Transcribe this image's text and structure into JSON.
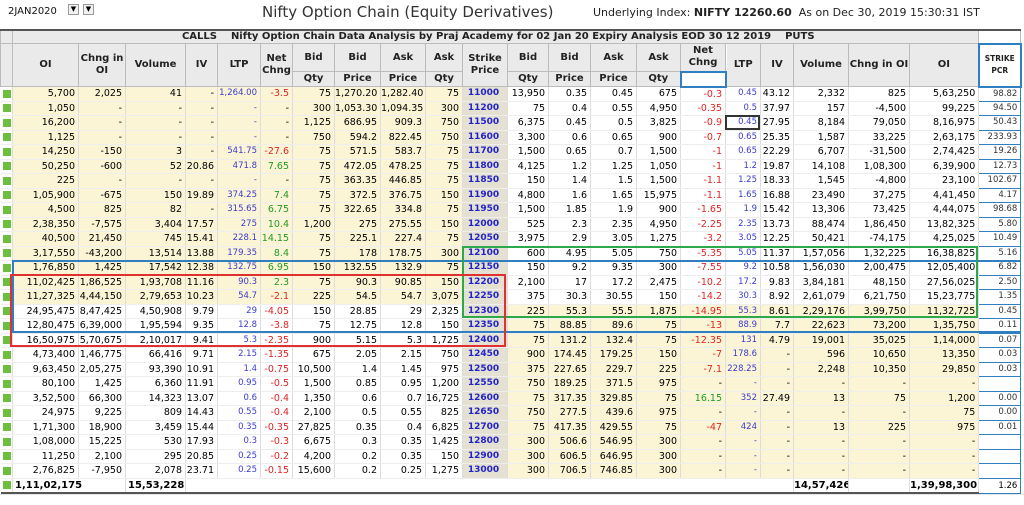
{
  "header": {
    "date": "2JAN2020",
    "title": "Nifty Option Chain (Equity Derivatives)",
    "underlying_label": "Underlying Index:",
    "underlying_value": "NIFTY 12260.60",
    "as_on": "As on Dec 30, 2019 15:30:31 IST"
  },
  "banner": {
    "calls": "CALLS",
    "title": "Nifty Option Chain Data Analysis by Praj Academy for 02 Jan 20 Expiry Analysis EOD 30 12  2019",
    "puts": "PUTS"
  },
  "columns": {
    "oi": "OI",
    "chng_oi": "Chng in OI",
    "volume": "Volume",
    "iv": "IV",
    "ltp": "LTP",
    "net_chng": "Net Chng",
    "bid": "Bid",
    "ask": "Ask",
    "qty": "Qty",
    "price": "Price",
    "strike": "Strike Price",
    "strike_pcr": "STRIKE PCR"
  },
  "colors": {
    "itm_bg": "#fbf5d6",
    "strike_bg": "#e4e1d3",
    "negative": "#e02424",
    "positive": "#229a22",
    "ltp": "#3a3ad0"
  },
  "rows": [
    [
      "5,700",
      "2,025",
      "41",
      "-",
      "1,264.00",
      "-3.5",
      "75",
      "1,270.20",
      "1,282.40",
      "75",
      "11000",
      "13,950",
      "0.35",
      "0.45",
      "675",
      "-0.3",
      "0.45",
      "43.12",
      "2,332",
      "825",
      "5,63,250",
      "98.82"
    ],
    [
      "1,050",
      "-",
      "-",
      "-",
      "-",
      "-",
      "300",
      "1,053.30",
      "1,094.35",
      "300",
      "11200",
      "75",
      "0.4",
      "0.55",
      "4,950",
      "-0.35",
      "0.5",
      "37.97",
      "157",
      "-4,500",
      "99,225",
      "94.50"
    ],
    [
      "16,200",
      "-",
      "-",
      "-",
      "-",
      "-",
      "1,125",
      "686.95",
      "909.3",
      "750",
      "11500",
      "6,375",
      "0.45",
      "0.5",
      "3,825",
      "-0.9",
      "0.45",
      "27.95",
      "8,184",
      "79,050",
      "8,16,975",
      "50.43"
    ],
    [
      "1,125",
      "-",
      "-",
      "-",
      "-",
      "-",
      "750",
      "594.2",
      "822.45",
      "750",
      "11600",
      "3,300",
      "0.6",
      "0.65",
      "900",
      "-0.7",
      "0.65",
      "25.35",
      "1,587",
      "33,225",
      "2,63,175",
      "233.93"
    ],
    [
      "14,250",
      "-150",
      "3",
      "-",
      "541.75",
      "-27.6",
      "75",
      "571.5",
      "583.7",
      "75",
      "11700",
      "1,500",
      "0.65",
      "0.7",
      "1,500",
      "-1",
      "0.65",
      "22.29",
      "6,707",
      "-31,500",
      "2,74,425",
      "19.26"
    ],
    [
      "50,250",
      "-600",
      "52",
      "20.86",
      "471.8",
      "7.65",
      "75",
      "472.05",
      "478.25",
      "75",
      "11800",
      "4,125",
      "1.2",
      "1.25",
      "1,050",
      "-1",
      "1.2",
      "19.87",
      "14,108",
      "1,08,300",
      "6,39,900",
      "12.73"
    ],
    [
      "225",
      "-",
      "-",
      "-",
      "-",
      "-",
      "75",
      "363.35",
      "446.85",
      "75",
      "11850",
      "150",
      "1.4",
      "1.5",
      "1,500",
      "-1.1",
      "1.25",
      "18.33",
      "1,545",
      "-4,800",
      "23,100",
      "102.67"
    ],
    [
      "1,05,900",
      "-675",
      "150",
      "19.89",
      "374.25",
      "7.4",
      "75",
      "372.5",
      "376.75",
      "150",
      "11900",
      "4,800",
      "1.6",
      "1.65",
      "15,975",
      "-1.1",
      "1.65",
      "16.88",
      "23,490",
      "37,275",
      "4,41,450",
      "4.17"
    ],
    [
      "4,500",
      "825",
      "82",
      "-",
      "315.65",
      "6.75",
      "75",
      "322.65",
      "334.8",
      "75",
      "11950",
      "1,500",
      "1.85",
      "1.9",
      "900",
      "-1.65",
      "1.9",
      "15.42",
      "13,306",
      "73,425",
      "4,44,075",
      "98.68"
    ],
    [
      "2,38,350",
      "-7,575",
      "3,404",
      "17.57",
      "275",
      "10.4",
      "1,200",
      "275",
      "275.55",
      "150",
      "12000",
      "525",
      "2.3",
      "2.35",
      "4,950",
      "-2.25",
      "2.35",
      "13.73",
      "88,474",
      "1,86,450",
      "13,82,325",
      "5.80"
    ],
    [
      "40,500",
      "21,450",
      "745",
      "15.41",
      "228.1",
      "14.15",
      "75",
      "225.1",
      "227.4",
      "75",
      "12050",
      "3,975",
      "2.9",
      "3.05",
      "1,275",
      "-3.2",
      "3.05",
      "12.25",
      "50,421",
      "-74,175",
      "4,25,025",
      "10.49"
    ],
    [
      "3,17,550",
      "-43,200",
      "13,514",
      "13.88",
      "179.35",
      "8.4",
      "75",
      "178",
      "178.75",
      "300",
      "12100",
      "600",
      "4.95",
      "5.05",
      "750",
      "-5.35",
      "5.05",
      "11.37",
      "1,57,056",
      "1,32,225",
      "16,38,825",
      "5.16"
    ],
    [
      "1,76,850",
      "1,425",
      "17,542",
      "12.38",
      "132.75",
      "6.95",
      "150",
      "132.55",
      "132.9",
      "75",
      "12150",
      "150",
      "9.2",
      "9.35",
      "300",
      "-7.55",
      "9.2",
      "10.58",
      "1,56,030",
      "2,00,475",
      "12,05,400",
      "6.82"
    ],
    [
      "11,02,425",
      "1,86,525",
      "1,93,708",
      "11.16",
      "90.3",
      "2.3",
      "75",
      "90.3",
      "90.85",
      "150",
      "12200",
      "2,100",
      "17",
      "17.2",
      "2,475",
      "-10.2",
      "17.2",
      "9.83",
      "3,84,181",
      "48,150",
      "27,56,025",
      "2.50"
    ],
    [
      "11,27,325",
      "4,44,150",
      "2,79,653",
      "10.23",
      "54.7",
      "-2.1",
      "225",
      "54.5",
      "54.7",
      "3,075",
      "12250",
      "375",
      "30.3",
      "30.55",
      "150",
      "-14.2",
      "30.3",
      "8.92",
      "2,61,079",
      "6,21,750",
      "15,23,775",
      "1.35"
    ],
    [
      "24,95,475",
      "8,47,425",
      "4,50,908",
      "9.79",
      "29",
      "-4.05",
      "150",
      "28.85",
      "29",
      "2,325",
      "12300",
      "225",
      "55.3",
      "55.5",
      "1,875",
      "-14.95",
      "55.3",
      "8.61",
      "2,29,176",
      "3,99,750",
      "11,32,725",
      "0.45"
    ],
    [
      "12,80,475",
      "6,39,000",
      "1,95,594",
      "9.35",
      "12.8",
      "-3.8",
      "75",
      "12.75",
      "12.8",
      "150",
      "12350",
      "75",
      "88.85",
      "89.6",
      "75",
      "-13",
      "88.9",
      "7.7",
      "22,623",
      "73,200",
      "1,35,750",
      "0.11"
    ],
    [
      "16,50,975",
      "5,70,675",
      "2,10,017",
      "9.41",
      "5.3",
      "-2.35",
      "900",
      "5.15",
      "5.3",
      "1,725",
      "12400",
      "75",
      "131.2",
      "132.4",
      "75",
      "-12.35",
      "131",
      "4.79",
      "19,001",
      "35,025",
      "1,14,000",
      "0.07"
    ],
    [
      "4,73,400",
      "1,46,775",
      "66,416",
      "9.71",
      "2.15",
      "-1.35",
      "675",
      "2.05",
      "2.15",
      "750",
      "12450",
      "900",
      "174.45",
      "179.25",
      "150",
      "-7",
      "178.6",
      "-",
      "596",
      "10,650",
      "13,350",
      "0.03"
    ],
    [
      "9,63,450",
      "2,05,275",
      "93,390",
      "10.91",
      "1.4",
      "-0.75",
      "10,500",
      "1.4",
      "1.45",
      "975",
      "12500",
      "375",
      "227.65",
      "229.7",
      "225",
      "-7.1",
      "228.25",
      "-",
      "2,248",
      "10,350",
      "29,850",
      "0.03"
    ],
    [
      "80,100",
      "1,425",
      "6,360",
      "11.91",
      "0.95",
      "-0.5",
      "1,500",
      "0.85",
      "0.95",
      "1,200",
      "12550",
      "750",
      "189.25",
      "371.5",
      "975",
      "-",
      "-",
      "-",
      "-",
      "-",
      "-",
      ""
    ],
    [
      "3,52,500",
      "66,300",
      "14,323",
      "13.07",
      "0.6",
      "-0.4",
      "1,350",
      "0.6",
      "0.7",
      "16,725",
      "12600",
      "75",
      "317.35",
      "329.85",
      "75",
      "16.15",
      "352",
      "27.49",
      "13",
      "75",
      "1,200",
      "0.00"
    ],
    [
      "24,975",
      "9,225",
      "809",
      "14.43",
      "0.55",
      "-0.4",
      "2,100",
      "0.5",
      "0.55",
      "825",
      "12650",
      "750",
      "277.5",
      "439.6",
      "975",
      "-",
      "-",
      "-",
      "-",
      "-",
      "75",
      "0.00"
    ],
    [
      "1,71,300",
      "18,900",
      "3,459",
      "15.44",
      "0.35",
      "-0.35",
      "27,825",
      "0.35",
      "0.4",
      "6,825",
      "12700",
      "75",
      "417.35",
      "429.55",
      "75",
      "-47",
      "424",
      "-",
      "13",
      "225",
      "975",
      "0.01"
    ],
    [
      "1,08,000",
      "15,225",
      "530",
      "17.93",
      "0.3",
      "-0.3",
      "6,675",
      "0.3",
      "0.35",
      "1,425",
      "12800",
      "300",
      "506.6",
      "546.95",
      "300",
      "-",
      "-",
      "-",
      "-",
      "-",
      "-",
      ""
    ],
    [
      "11,250",
      "2,100",
      "295",
      "20.85",
      "0.25",
      "-0.2",
      "4,200",
      "0.2",
      "0.35",
      "150",
      "12900",
      "300",
      "606.5",
      "646.95",
      "300",
      "-",
      "-",
      "-",
      "-",
      "-",
      "-",
      ""
    ],
    [
      "2,76,825",
      "-7,950",
      "2,078",
      "23.71",
      "0.25",
      "-0.15",
      "15,600",
      "0.2",
      "0.25",
      "1,275",
      "13000",
      "300",
      "706.5",
      "746.85",
      "300",
      "-",
      "-",
      "-",
      "-",
      "-",
      "-",
      ""
    ]
  ],
  "totals": {
    "call_oi": "1,11,02,175",
    "call_volume": "15,53,228",
    "put_volume": "14,57,426",
    "put_oi": "1,39,98,300",
    "pcr": "1.26"
  },
  "atm_strike_index": 13
}
